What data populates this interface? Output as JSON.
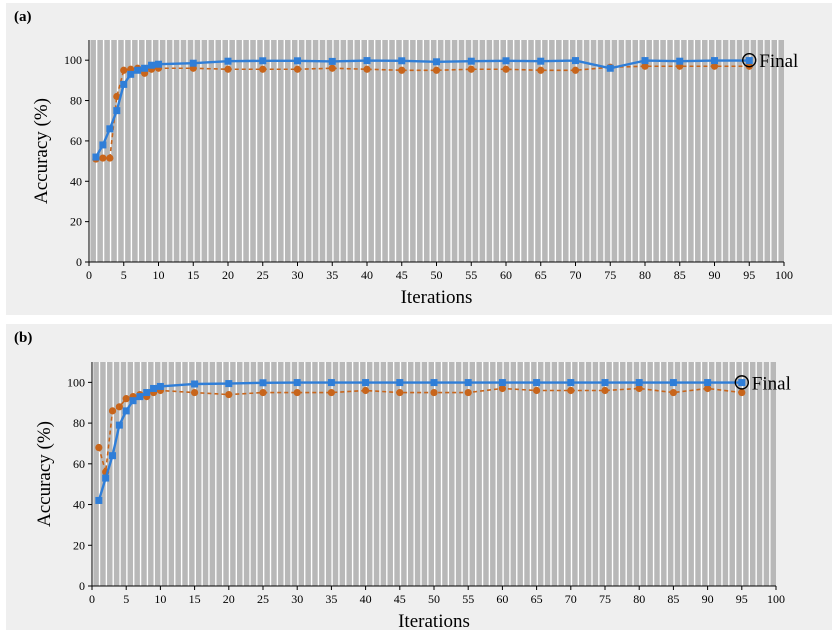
{
  "chart_data": [
    {
      "type": "line",
      "panel_label": "(a)",
      "xlabel": "Iterations",
      "ylabel": "Accuracy (%)",
      "xlim": [
        0,
        100
      ],
      "ylim": [
        0,
        110
      ],
      "xticks": [
        0,
        5,
        10,
        15,
        20,
        25,
        30,
        35,
        40,
        45,
        50,
        55,
        60,
        65,
        70,
        75,
        80,
        85,
        90,
        95,
        100
      ],
      "yticks": [
        0,
        20,
        40,
        60,
        80,
        100
      ],
      "grid": "vertical gray stripes",
      "annotation": {
        "text": "Final",
        "x": 95,
        "y": 100
      },
      "series": [
        {
          "color": "#2f7ed8",
          "line_style": "solid",
          "marker": "square",
          "x": [
            1,
            2,
            3,
            4,
            5,
            6,
            7,
            8,
            9,
            10,
            15,
            20,
            25,
            30,
            35,
            40,
            45,
            50,
            55,
            60,
            65,
            70,
            75,
            80,
            85,
            90,
            95
          ],
          "y": [
            52,
            58,
            66,
            75,
            88,
            93,
            95,
            96,
            97.5,
            98,
            98.5,
            99.5,
            99.7,
            99.7,
            99.4,
            99.8,
            99.7,
            99.2,
            99.5,
            99.7,
            99.5,
            99.8,
            96,
            99.8,
            99.5,
            99.8,
            99.8
          ]
        },
        {
          "color": "#c8651b",
          "line_style": "dashed",
          "marker": "circle",
          "x": [
            1,
            2,
            3,
            4,
            5,
            6,
            7,
            8,
            9,
            10,
            15,
            20,
            25,
            30,
            35,
            40,
            45,
            50,
            55,
            60,
            65,
            70,
            75,
            80,
            85,
            90,
            95
          ],
          "y": [
            51,
            51.5,
            51.5,
            82,
            95,
            95.5,
            96,
            93.5,
            95.5,
            96,
            96,
            95.5,
            95.5,
            95.5,
            96,
            95.5,
            95,
            95,
            95.5,
            95.5,
            95,
            95,
            96.5,
            97,
            97,
            97,
            97
          ]
        }
      ]
    },
    {
      "type": "line",
      "panel_label": "(b)",
      "xlabel": "Iterations",
      "ylabel": "Accuracy (%)",
      "xlim": [
        0,
        100
      ],
      "ylim": [
        0,
        110
      ],
      "xticks": [
        0,
        5,
        10,
        15,
        20,
        25,
        30,
        35,
        40,
        45,
        50,
        55,
        60,
        65,
        70,
        75,
        80,
        85,
        90,
        95,
        100
      ],
      "yticks": [
        0,
        20,
        40,
        60,
        80,
        100
      ],
      "grid": "vertical gray stripes",
      "annotation": {
        "text": "Final",
        "x": 95,
        "y": 100
      },
      "series": [
        {
          "color": "#2f7ed8",
          "line_style": "solid",
          "marker": "square",
          "x": [
            1,
            2,
            3,
            4,
            5,
            6,
            7,
            8,
            9,
            10,
            15,
            20,
            25,
            30,
            35,
            40,
            45,
            50,
            55,
            60,
            65,
            70,
            75,
            80,
            85,
            90,
            95
          ],
          "y": [
            42,
            53,
            64,
            79,
            86,
            91,
            93,
            95,
            97,
            98,
            99.2,
            99.4,
            99.8,
            99.9,
            99.9,
            99.9,
            99.9,
            99.9,
            99.9,
            99.9,
            99.9,
            99.9,
            99.9,
            99.9,
            99.9,
            99.9,
            99.9
          ]
        },
        {
          "color": "#c8651b",
          "line_style": "dashed",
          "marker": "circle",
          "x": [
            1,
            2,
            3,
            4,
            5,
            6,
            7,
            8,
            9,
            10,
            15,
            20,
            25,
            30,
            35,
            40,
            45,
            50,
            55,
            60,
            65,
            70,
            75,
            80,
            85,
            90,
            95
          ],
          "y": [
            68,
            56,
            86,
            88,
            92,
            93,
            94,
            93,
            95,
            96,
            95,
            94,
            95,
            95,
            95,
            96,
            95,
            95,
            95,
            97,
            96,
            96,
            96,
            97,
            95,
            97,
            95
          ]
        }
      ]
    }
  ]
}
